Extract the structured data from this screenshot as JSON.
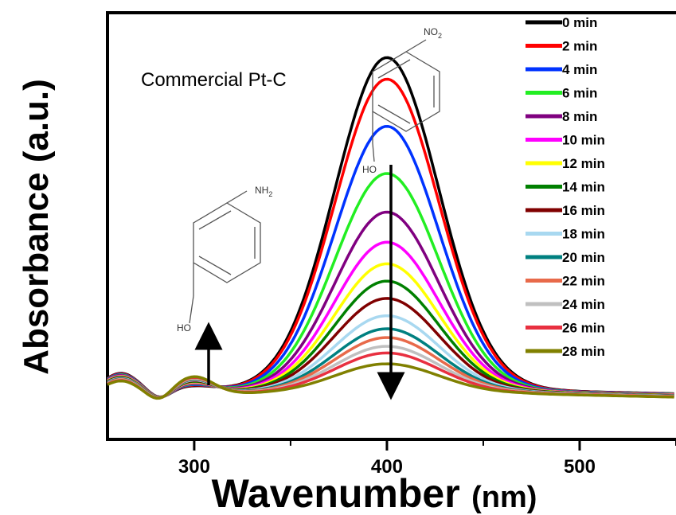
{
  "chart_data": {
    "type": "line",
    "title": "Commercial Pt-C",
    "xlabel": "Wavenumber",
    "xlabel_unit": "(nm)",
    "ylabel": "Absorbance (a.u.)",
    "xlim": [
      255,
      550
    ],
    "ylim": [
      0,
      1
    ],
    "x_ticks": [
      300,
      400,
      500
    ],
    "legend_position": "top-right",
    "annotations": {
      "product_group": "NH",
      "product_sub": "2",
      "reactant_group": "NO",
      "reactant_sub": "2",
      "hydroxyl": "HO"
    },
    "peak_nm": 400,
    "series": [
      {
        "name": "0 min",
        "color": "#000000",
        "peak": 0.78
      },
      {
        "name": "2 min",
        "color": "#ff0000",
        "peak": 0.73
      },
      {
        "name": "4 min",
        "color": "#0033ff",
        "peak": 0.62
      },
      {
        "name": "6 min",
        "color": "#22ee22",
        "peak": 0.51
      },
      {
        "name": "8 min",
        "color": "#800080",
        "peak": 0.42
      },
      {
        "name": "10 min",
        "color": "#ff00ff",
        "peak": 0.35
      },
      {
        "name": "12 min",
        "color": "#ffff00",
        "peak": 0.3
      },
      {
        "name": "14 min",
        "color": "#008000",
        "peak": 0.26
      },
      {
        "name": " 16 min",
        "color": "#800000",
        "peak": 0.22
      },
      {
        "name": "18 min",
        "color": "#a8d8f0",
        "peak": 0.18
      },
      {
        "name": "20 min",
        "color": "#008080",
        "peak": 0.15
      },
      {
        "name": "22 min",
        "color": "#e86a4a",
        "peak": 0.13
      },
      {
        "name": "24 min",
        "color": "#c0c0c0",
        "peak": 0.11
      },
      {
        "name": "26 min",
        "color": "#e83040",
        "peak": 0.095
      },
      {
        "name": "28 min",
        "color": "#808000",
        "peak": 0.07
      }
    ]
  }
}
